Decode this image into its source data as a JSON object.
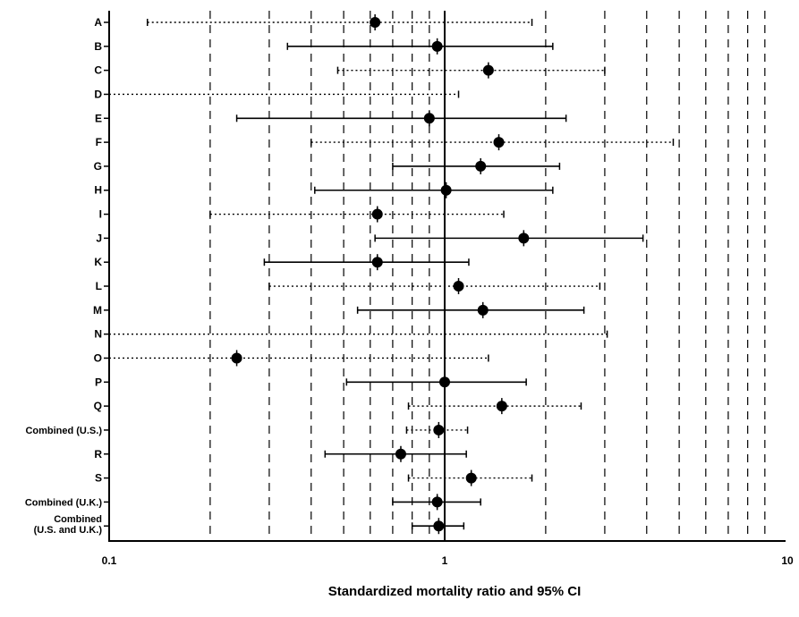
{
  "chart_data": {
    "type": "forest",
    "xlabel": "Standardized mortality ratio and 95% CI",
    "xscale": "log",
    "xlim": [
      0.1,
      10
    ],
    "x_tick_labels": [
      "0.1",
      "1",
      "10"
    ],
    "reference_line": 1,
    "grid": "vertical dashed at 0.2, 0.3, 0.4, 0.5, 0.6, 0.7, 0.8, 0.9, 2, 3, 4, 5, 6, 7, 8, 9",
    "rows": [
      {
        "label": "A",
        "est": 0.62,
        "lo": 0.13,
        "hi": 1.82,
        "style": "dotted"
      },
      {
        "label": "B",
        "est": 0.95,
        "lo": 0.34,
        "hi": 2.1,
        "style": "solid"
      },
      {
        "label": "C",
        "est": 1.35,
        "lo": 0.48,
        "hi": 3.0,
        "style": "dotted"
      },
      {
        "label": "D",
        "est": null,
        "lo": 0.1,
        "hi": 1.1,
        "style": "dotted"
      },
      {
        "label": "E",
        "est": 0.9,
        "lo": 0.24,
        "hi": 2.3,
        "style": "solid"
      },
      {
        "label": "F",
        "est": 1.45,
        "lo": 0.4,
        "hi": 4.8,
        "style": "dotted"
      },
      {
        "label": "G",
        "est": 1.28,
        "lo": 0.7,
        "hi": 2.2,
        "style": "solid"
      },
      {
        "label": "H",
        "est": 1.01,
        "lo": 0.41,
        "hi": 2.1,
        "style": "solid"
      },
      {
        "label": "I",
        "est": 0.63,
        "lo": 0.2,
        "hi": 1.5,
        "style": "dotted"
      },
      {
        "label": "J",
        "est": 1.72,
        "lo": 0.62,
        "hi": 3.9,
        "style": "solid"
      },
      {
        "label": "K",
        "est": 0.63,
        "lo": 0.29,
        "hi": 1.18,
        "style": "solid"
      },
      {
        "label": "L",
        "est": 1.1,
        "lo": 0.3,
        "hi": 2.9,
        "style": "dotted"
      },
      {
        "label": "M",
        "est": 1.3,
        "lo": 0.55,
        "hi": 2.6,
        "style": "solid"
      },
      {
        "label": "N",
        "est": null,
        "lo": 0.1,
        "hi": 3.05,
        "style": "dotted"
      },
      {
        "label": "O",
        "est": 0.24,
        "lo": 0.1,
        "hi": 1.35,
        "style": "dotted"
      },
      {
        "label": "P",
        "est": 1.0,
        "lo": 0.51,
        "hi": 1.75,
        "style": "solid"
      },
      {
        "label": "Q",
        "est": 1.48,
        "lo": 0.78,
        "hi": 2.55,
        "style": "dotted"
      },
      {
        "label": "Combined (U.S.)",
        "est": 0.96,
        "lo": 0.77,
        "hi": 1.17,
        "style": "dotted"
      },
      {
        "label": "R",
        "est": 0.74,
        "lo": 0.44,
        "hi": 1.16,
        "style": "solid"
      },
      {
        "label": "S",
        "est": 1.2,
        "lo": 0.78,
        "hi": 1.82,
        "style": "dotted"
      },
      {
        "label": "Combined (U.K.)",
        "est": 0.95,
        "lo": 0.7,
        "hi": 1.28,
        "style": "solid"
      },
      {
        "label": "Combined\n(U.S. and U.K.)",
        "est": 0.96,
        "lo": 0.8,
        "hi": 1.14,
        "style": "solid"
      }
    ]
  }
}
